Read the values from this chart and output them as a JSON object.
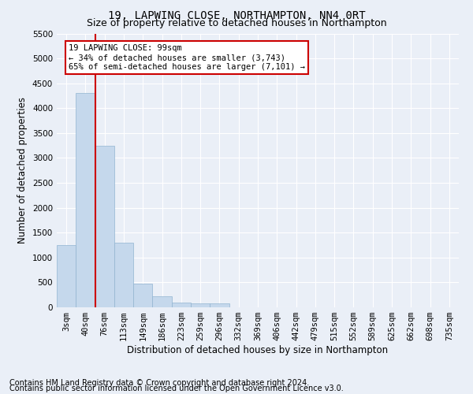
{
  "title": "19, LAPWING CLOSE, NORTHAMPTON, NN4 0RT",
  "subtitle": "Size of property relative to detached houses in Northampton",
  "xlabel": "Distribution of detached houses by size in Northampton",
  "ylabel": "Number of detached properties",
  "bar_values": [
    1250,
    4300,
    3250,
    1300,
    475,
    225,
    100,
    75,
    75,
    0,
    0,
    0,
    0,
    0,
    0,
    0,
    0,
    0,
    0,
    0,
    0
  ],
  "bar_labels": [
    "3sqm",
    "40sqm",
    "76sqm",
    "113sqm",
    "149sqm",
    "186sqm",
    "223sqm",
    "259sqm",
    "296sqm",
    "332sqm",
    "369sqm",
    "406sqm",
    "442sqm",
    "479sqm",
    "515sqm",
    "552sqm",
    "589sqm",
    "625sqm",
    "662sqm",
    "698sqm",
    "735sqm"
  ],
  "bar_color": "#c5d8ec",
  "bar_edge_color": "#92b4d0",
  "vline_color": "#cc0000",
  "ylim": [
    0,
    5500
  ],
  "yticks": [
    0,
    500,
    1000,
    1500,
    2000,
    2500,
    3000,
    3500,
    4000,
    4500,
    5000,
    5500
  ],
  "annotation_text": "19 LAPWING CLOSE: 99sqm\n← 34% of detached houses are smaller (3,743)\n65% of semi-detached houses are larger (7,101) →",
  "annotation_box_color": "#ffffff",
  "annotation_box_edge_color": "#cc0000",
  "footer_line1": "Contains HM Land Registry data © Crown copyright and database right 2024.",
  "footer_line2": "Contains public sector information licensed under the Open Government Licence v3.0.",
  "background_color": "#eaeff7",
  "plot_bg_color": "#eaeff7",
  "grid_color": "#ffffff",
  "title_fontsize": 10,
  "subtitle_fontsize": 9,
  "axis_label_fontsize": 8.5,
  "tick_fontsize": 7.5,
  "footer_fontsize": 7,
  "annotation_fontsize": 7.5
}
